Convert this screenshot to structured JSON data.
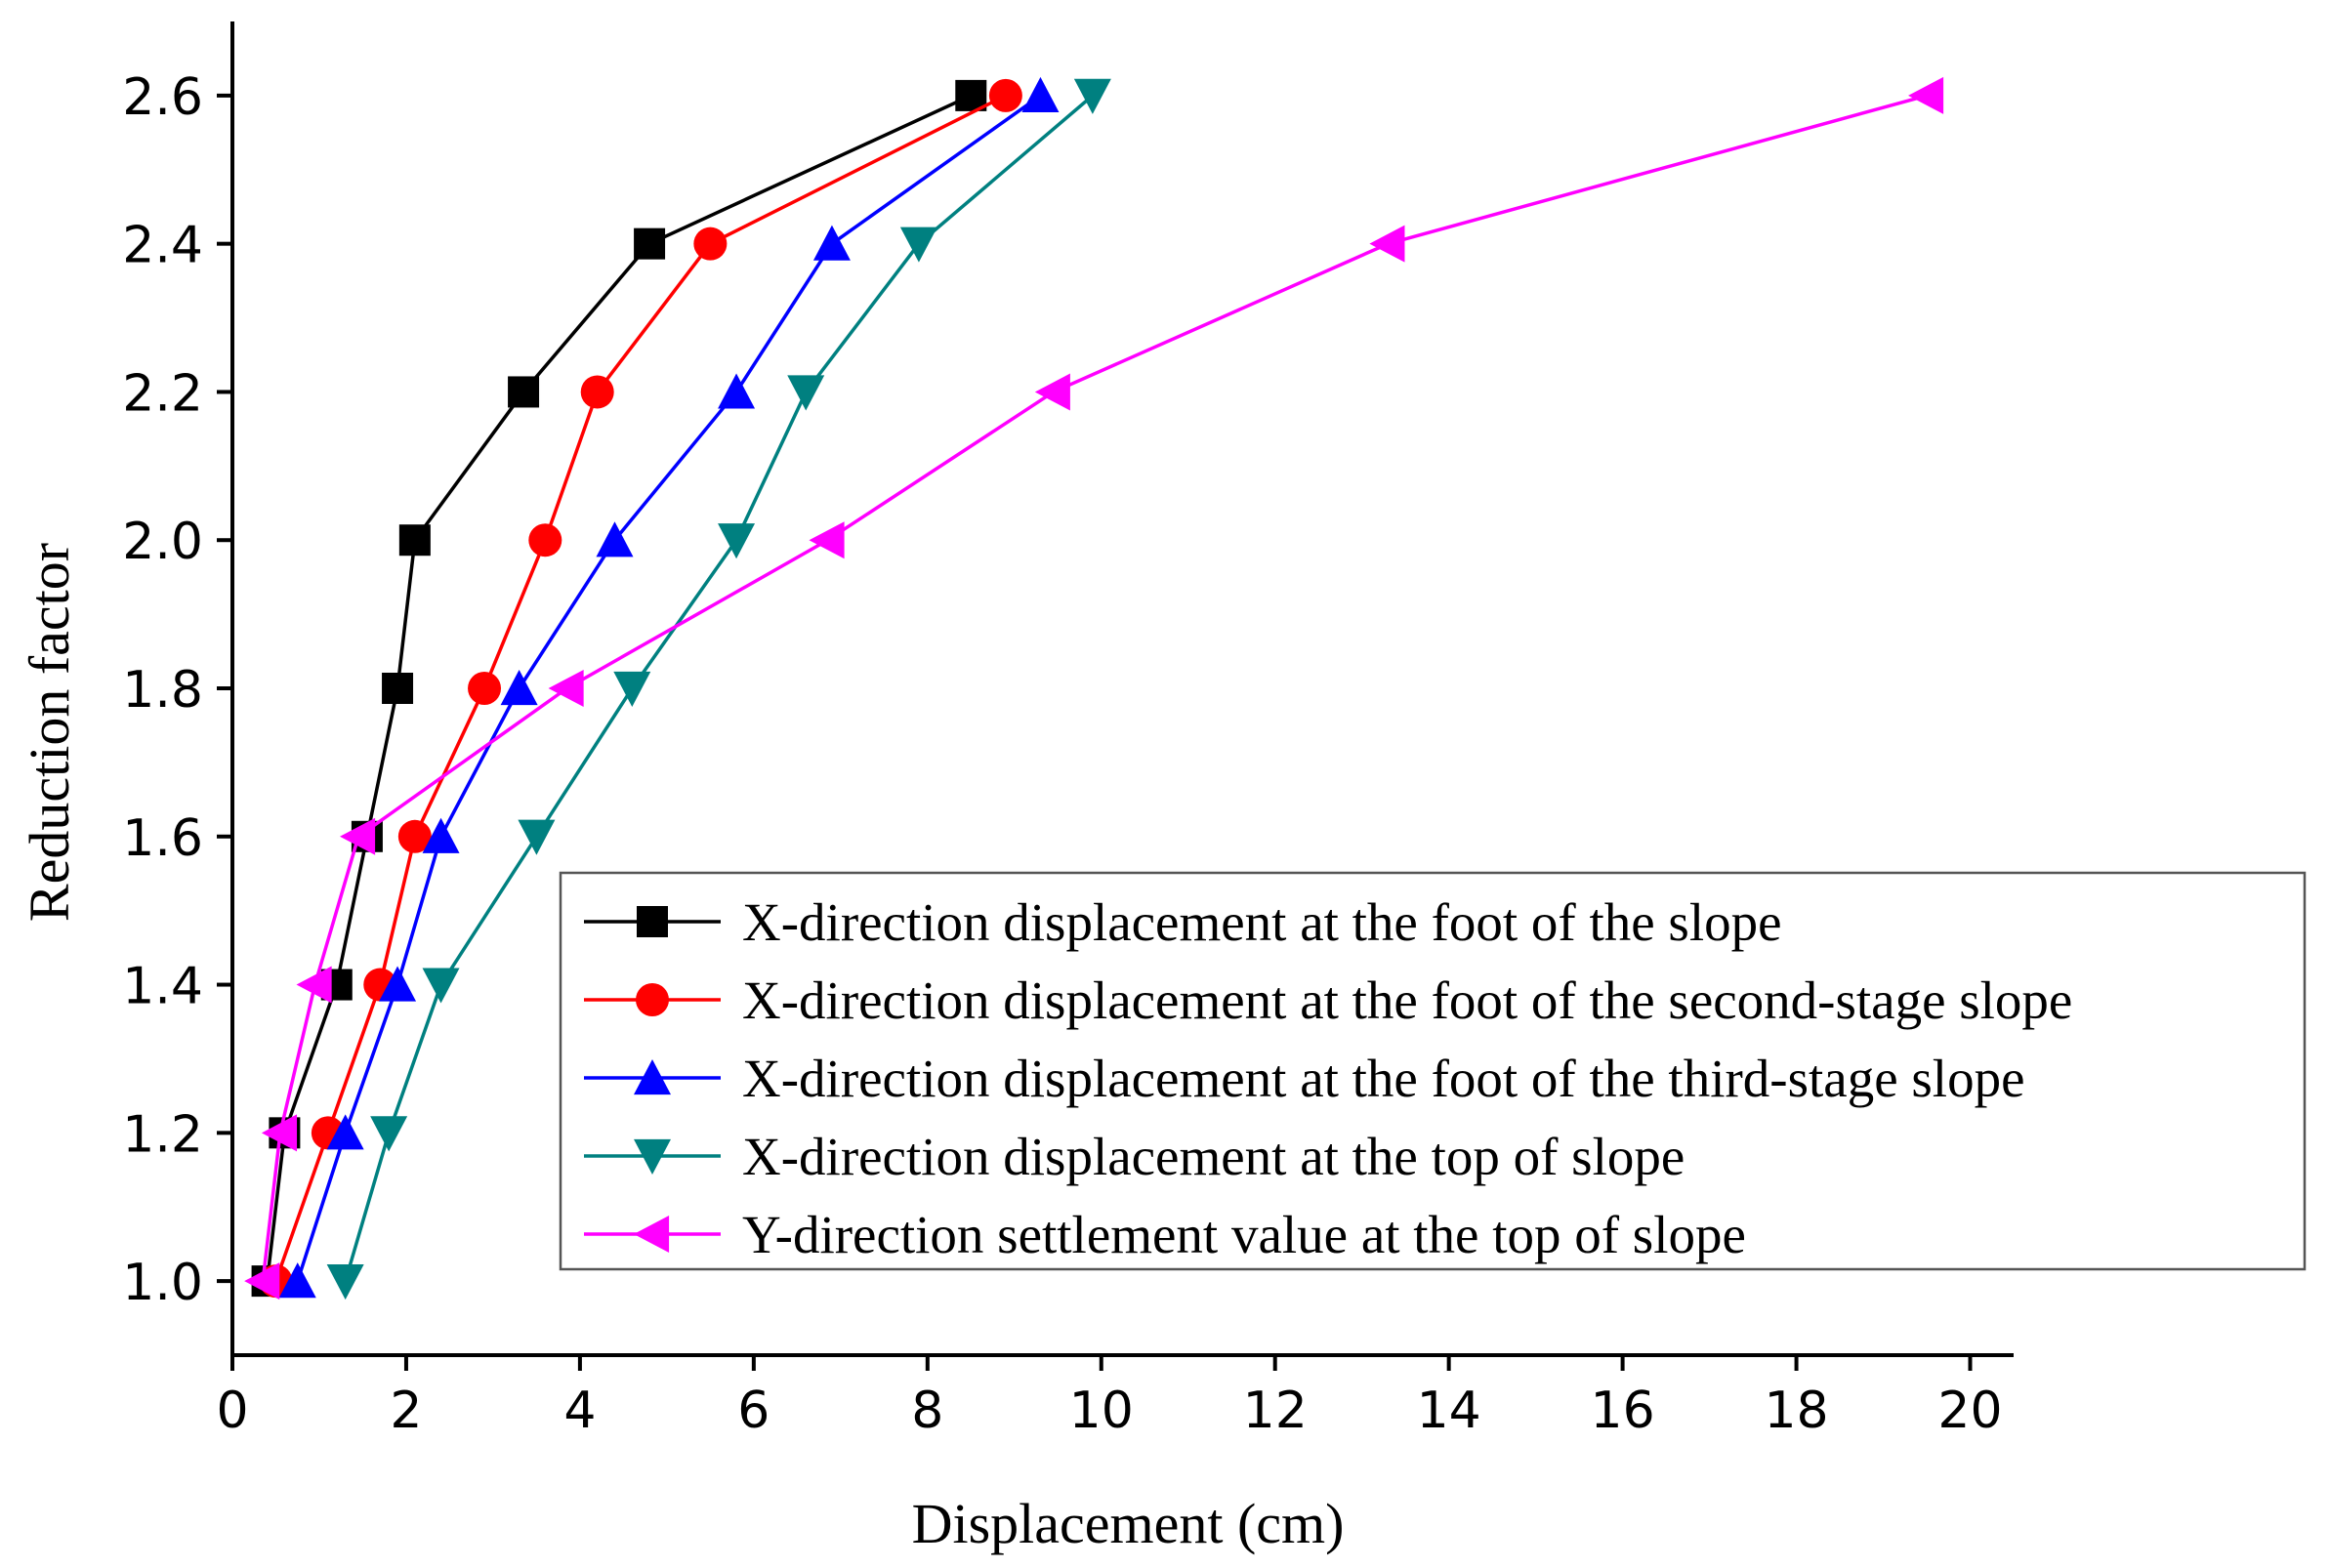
{
  "chart_data": {
    "type": "line",
    "title": "",
    "xlabel": "Displacement (cm)",
    "ylabel": "Reduction factor",
    "xlim": [
      0,
      20.5
    ],
    "ylim": [
      0.9,
      2.7
    ],
    "xticks": [
      0,
      2,
      4,
      6,
      8,
      10,
      12,
      14,
      16,
      18,
      20
    ],
    "xtick_labels": [
      "0",
      "2",
      "4",
      "6",
      "8",
      "10",
      "12",
      "14",
      "16",
      "18",
      "20"
    ],
    "yticks": [
      1.0,
      1.2,
      1.4,
      1.6,
      1.8,
      2.0,
      2.2,
      2.4,
      2.6
    ],
    "ytick_labels": [
      "1.0",
      "1.2",
      "1.4",
      "1.6",
      "1.8",
      "2.0",
      "2.2",
      "2.4",
      "2.6"
    ],
    "grid": false,
    "legend_position": "bottom-right",
    "y": [
      1.0,
      1.2,
      1.4,
      1.6,
      1.8,
      2.0,
      2.2,
      2.4,
      2.6
    ],
    "series": [
      {
        "name": "X-direction displacement at the foot of the slope",
        "color": "#000000",
        "marker": "square",
        "x": [
          0.4,
          0.6,
          1.2,
          1.55,
          1.9,
          2.1,
          3.35,
          4.8,
          8.5
        ]
      },
      {
        "name": "X-direction displacement at the foot of the second-stage slope",
        "color": "#ff0000",
        "marker": "circle",
        "x": [
          0.5,
          1.1,
          1.7,
          2.1,
          2.9,
          3.6,
          4.2,
          5.5,
          8.9
        ]
      },
      {
        "name": "X-direction displacement at the foot of the third-stage slope",
        "color": "#0000ff",
        "marker": "triangle-up",
        "x": [
          0.75,
          1.3,
          1.9,
          2.4,
          3.3,
          4.4,
          5.8,
          6.9,
          9.3
        ]
      },
      {
        "name": "X-direction displacement at the top of slope",
        "color": "#008080",
        "marker": "triangle-down",
        "x": [
          1.3,
          1.8,
          2.4,
          3.5,
          4.6,
          5.8,
          6.6,
          7.9,
          9.9
        ]
      },
      {
        "name": "Y-direction settlement value at the top of slope",
        "color": "#ff00ff",
        "marker": "triangle-left",
        "x": [
          0.35,
          0.55,
          0.95,
          1.45,
          3.85,
          6.85,
          9.45,
          13.3,
          19.5
        ]
      }
    ]
  }
}
